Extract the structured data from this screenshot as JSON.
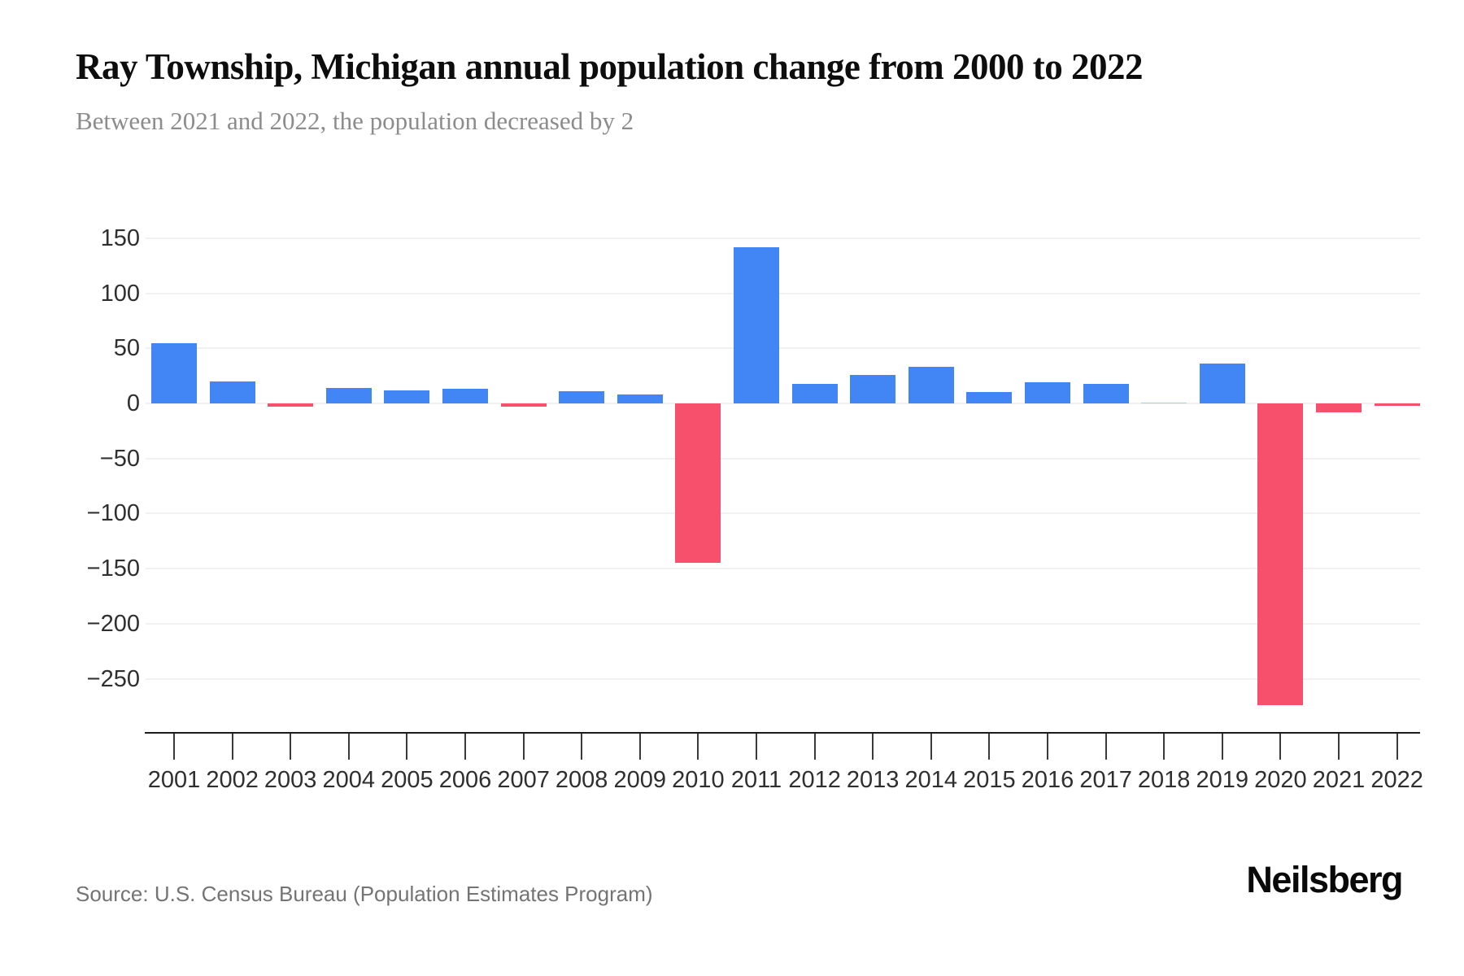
{
  "header": {
    "title": "Ray Township, Michigan annual population change from 2000 to 2022",
    "subtitle": "Between 2021 and 2022, the population decreased by 2"
  },
  "footer": {
    "source": "Source: U.S. Census Bureau (Population Estimates Program)",
    "brand": "Neilsberg"
  },
  "chart_data": {
    "type": "bar",
    "title": "Ray Township, Michigan annual population change from 2000 to 2022",
    "subtitle": "Between 2021 and 2022, the population decreased by 2",
    "xlabel": "",
    "ylabel": "",
    "categories": [
      "2001",
      "2002",
      "2003",
      "2004",
      "2005",
      "2006",
      "2007",
      "2008",
      "2009",
      "2010",
      "2011",
      "2012",
      "2013",
      "2014",
      "2015",
      "2016",
      "2017",
      "2018",
      "2019",
      "2020",
      "2021",
      "2022"
    ],
    "values": [
      55,
      20,
      -3,
      14,
      12,
      13,
      -3,
      11,
      8,
      -145,
      142,
      18,
      26,
      33,
      10,
      19,
      18,
      1,
      36,
      -274,
      -8,
      -2
    ],
    "yticks": [
      150,
      100,
      50,
      0,
      -50,
      -100,
      -150,
      -200,
      -250
    ],
    "ylim": [
      -290,
      175
    ],
    "grid": true,
    "legend": "none",
    "colors": {
      "positive": "#4285F4",
      "negative": "#F6506C",
      "tiny_positive": "#AECBF5"
    }
  }
}
